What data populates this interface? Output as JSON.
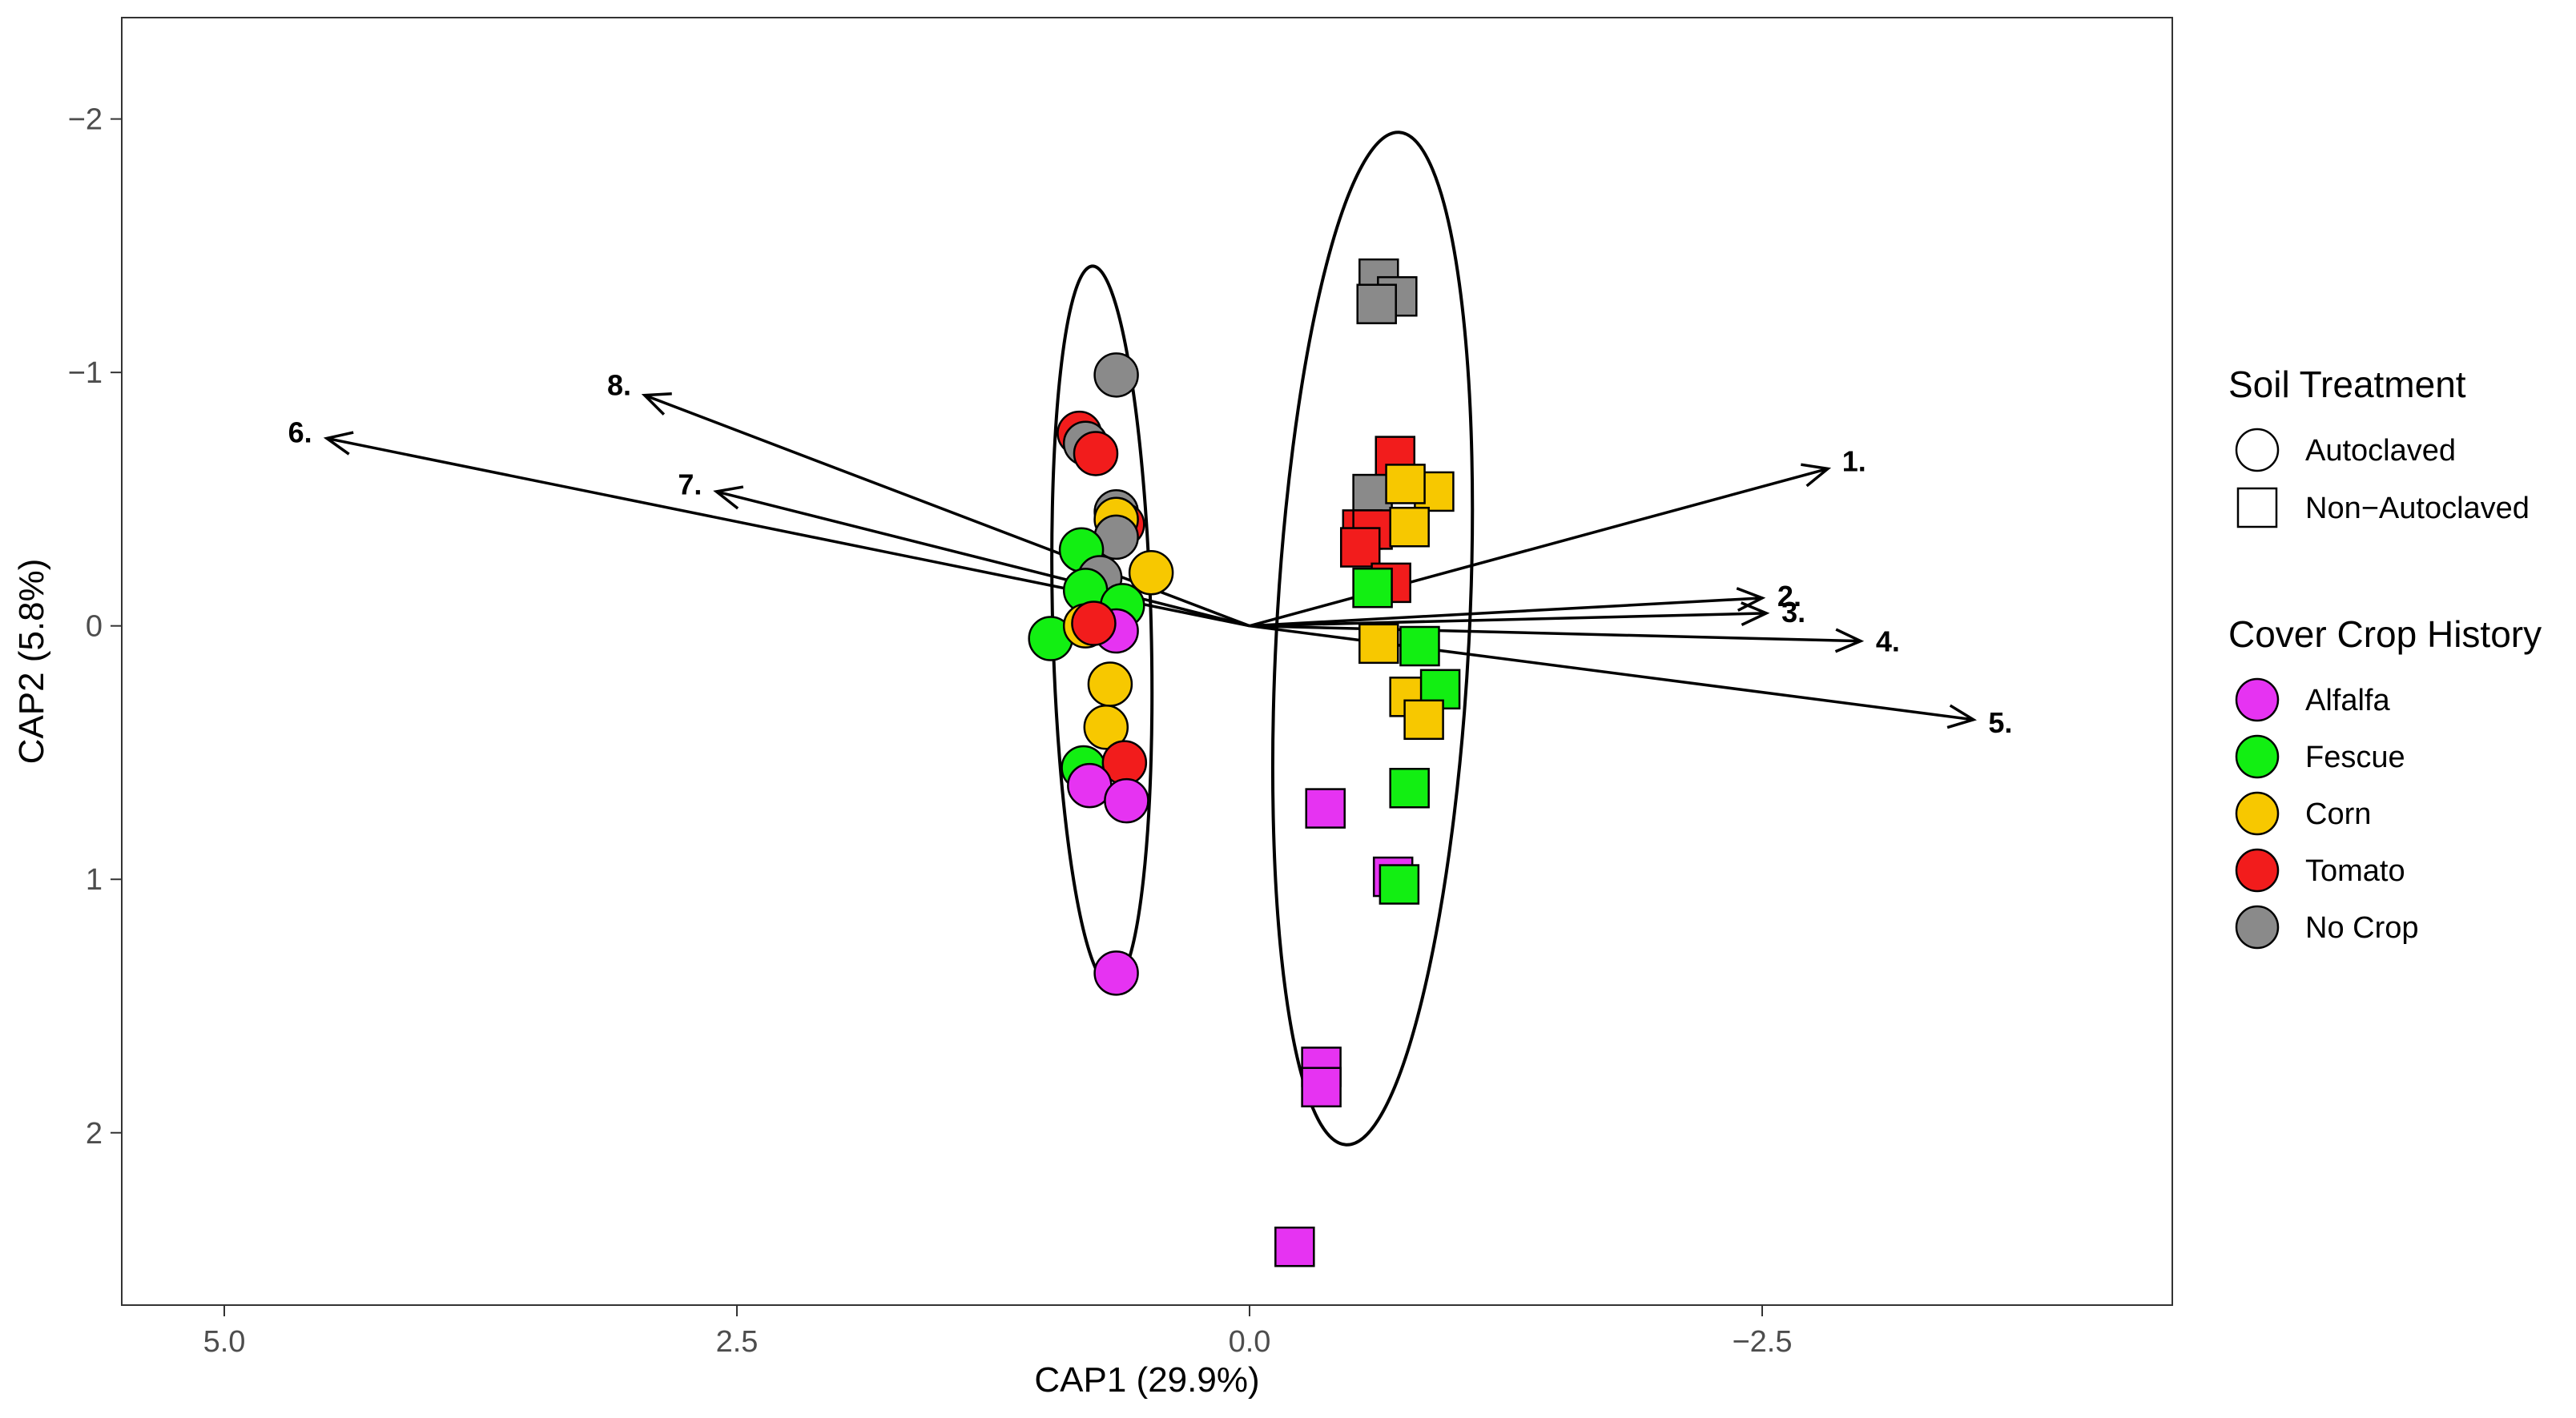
{
  "chart_data": {
    "type": "scatter",
    "title": "",
    "xlabel": "CAP1 (29.9%)",
    "ylabel": "CAP2 (5.8%)",
    "x_reversed": true,
    "y_reversed": true,
    "xlim": [
      5.5,
      -4.5
    ],
    "ylim": [
      -2.4,
      2.68
    ],
    "x_ticks": [
      5.0,
      2.5,
      0.0,
      -2.5
    ],
    "x_tick_labels": [
      "5.0",
      "2.5",
      "0.0",
      "−2.5"
    ],
    "y_ticks": [
      -2,
      -1,
      0,
      1,
      2
    ],
    "y_tick_labels": [
      "−2",
      "−1",
      "0",
      "1",
      "2"
    ],
    "grid": false,
    "colors": {
      "Alfalfa": "#e633f2",
      "Fescue": "#12ef12",
      "Corn": "#f7c800",
      "Tomato": "#f21c1c",
      "No Crop": "#8a8a8a",
      "ellipse": "#000000",
      "arrow": "#000000"
    },
    "legend": {
      "placement": "right",
      "shape_title": "Soil Treatment",
      "shape_entries": [
        {
          "label": "Autoclaved",
          "shape": "circle"
        },
        {
          "label": "Non−Autoclaved",
          "shape": "square"
        }
      ],
      "color_title": "Cover Crop History",
      "color_entries": [
        "Alfalfa",
        "Fescue",
        "Corn",
        "Tomato",
        "No Crop"
      ]
    },
    "ellipses": [
      {
        "name": "autoclaved-ellipse",
        "cx": 0.72,
        "cy": 0.0,
        "rx": 0.24,
        "ry": 1.42,
        "angle": -1.5
      },
      {
        "name": "non-autoclaved-ellipse",
        "cx": -0.6,
        "cy": 0.05,
        "rx": 0.47,
        "ry": 2.0,
        "angle": 3.0
      }
    ],
    "vectors": [
      {
        "label": "1.",
        "x": -2.82,
        "y": -0.62
      },
      {
        "label": "2.",
        "x": -2.5,
        "y": -0.11
      },
      {
        "label": "3.",
        "x": -2.52,
        "y": -0.05
      },
      {
        "label": "4.",
        "x": -2.98,
        "y": 0.06
      },
      {
        "label": "5.",
        "x": -3.53,
        "y": 0.37
      },
      {
        "label": "6.",
        "x": 4.5,
        "y": -0.74
      },
      {
        "label": "7.",
        "x": 2.6,
        "y": -0.53
      },
      {
        "label": "8.",
        "x": 2.95,
        "y": -0.91
      }
    ],
    "series": [
      {
        "name": "Autoclaved",
        "shape": "circle",
        "points": [
          {
            "x": 0.65,
            "y": -0.99,
            "group": "No Crop"
          },
          {
            "x": 0.83,
            "y": -0.76,
            "group": "Tomato"
          },
          {
            "x": 0.8,
            "y": -0.72,
            "group": "No Crop"
          },
          {
            "x": 0.75,
            "y": -0.68,
            "group": "Tomato"
          },
          {
            "x": 0.65,
            "y": -0.45,
            "group": "No Crop"
          },
          {
            "x": 0.62,
            "y": -0.4,
            "group": "Tomato"
          },
          {
            "x": 0.65,
            "y": -0.42,
            "group": "Corn"
          },
          {
            "x": 0.65,
            "y": -0.35,
            "group": "No Crop"
          },
          {
            "x": 0.82,
            "y": -0.3,
            "group": "Fescue"
          },
          {
            "x": 0.48,
            "y": -0.21,
            "group": "Corn"
          },
          {
            "x": 0.73,
            "y": -0.19,
            "group": "No Crop"
          },
          {
            "x": 0.8,
            "y": -0.14,
            "group": "Fescue"
          },
          {
            "x": 0.62,
            "y": -0.08,
            "group": "Fescue"
          },
          {
            "x": 0.97,
            "y": 0.05,
            "group": "Fescue"
          },
          {
            "x": 0.8,
            "y": 0.0,
            "group": "Corn"
          },
          {
            "x": 0.65,
            "y": 0.02,
            "group": "Alfalfa"
          },
          {
            "x": 0.76,
            "y": -0.01,
            "group": "Tomato"
          },
          {
            "x": 0.68,
            "y": 0.23,
            "group": "Corn"
          },
          {
            "x": 0.7,
            "y": 0.4,
            "group": "Corn"
          },
          {
            "x": 0.81,
            "y": 0.56,
            "group": "Fescue"
          },
          {
            "x": 0.61,
            "y": 0.54,
            "group": "Tomato"
          },
          {
            "x": 0.78,
            "y": 0.63,
            "group": "Alfalfa"
          },
          {
            "x": 0.6,
            "y": 0.69,
            "group": "Alfalfa"
          },
          {
            "x": 0.65,
            "y": 1.37,
            "group": "Alfalfa"
          }
        ]
      },
      {
        "name": "Non-Autoclaved",
        "shape": "square",
        "points": [
          {
            "x": -0.63,
            "y": -1.37,
            "group": "No Crop"
          },
          {
            "x": -0.72,
            "y": -1.3,
            "group": "No Crop"
          },
          {
            "x": -0.62,
            "y": -1.27,
            "group": "No Crop"
          },
          {
            "x": -0.71,
            "y": -0.67,
            "group": "Tomato"
          },
          {
            "x": -0.6,
            "y": -0.52,
            "group": "No Crop"
          },
          {
            "x": -0.9,
            "y": -0.53,
            "group": "Corn"
          },
          {
            "x": -0.76,
            "y": -0.56,
            "group": "Corn"
          },
          {
            "x": -0.55,
            "y": -0.38,
            "group": "Tomato"
          },
          {
            "x": -0.6,
            "y": -0.38,
            "group": "Tomato"
          },
          {
            "x": -0.78,
            "y": -0.39,
            "group": "Corn"
          },
          {
            "x": -0.54,
            "y": -0.31,
            "group": "Tomato"
          },
          {
            "x": -0.69,
            "y": -0.17,
            "group": "Tomato"
          },
          {
            "x": -0.6,
            "y": -0.15,
            "group": "Fescue"
          },
          {
            "x": -0.63,
            "y": 0.07,
            "group": "Corn"
          },
          {
            "x": -0.83,
            "y": 0.08,
            "group": "Fescue"
          },
          {
            "x": -0.78,
            "y": 0.28,
            "group": "Corn"
          },
          {
            "x": -0.93,
            "y": 0.25,
            "group": "Fescue"
          },
          {
            "x": -0.85,
            "y": 0.37,
            "group": "Corn"
          },
          {
            "x": -0.78,
            "y": 0.64,
            "group": "Fescue"
          },
          {
            "x": -0.37,
            "y": 0.72,
            "group": "Alfalfa"
          },
          {
            "x": -0.7,
            "y": 0.99,
            "group": "Alfalfa"
          },
          {
            "x": -0.73,
            "y": 1.02,
            "group": "Fescue"
          },
          {
            "x": -0.35,
            "y": 1.74,
            "group": "Alfalfa"
          },
          {
            "x": -0.35,
            "y": 1.82,
            "group": "Alfalfa"
          },
          {
            "x": -0.22,
            "y": 2.45,
            "group": "Alfalfa"
          }
        ]
      }
    ]
  }
}
